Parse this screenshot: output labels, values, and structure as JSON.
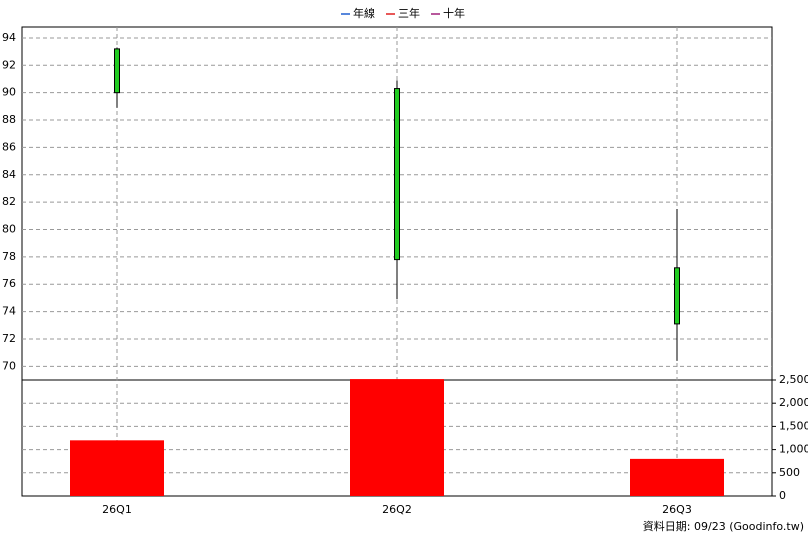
{
  "chart_data": {
    "type": "candlestick",
    "categories": [
      "26Q1",
      "26Q2",
      "26Q3"
    ],
    "open": [
      93.2,
      90.3,
      77.2
    ],
    "high": [
      93.3,
      90.9,
      81.5
    ],
    "low": [
      88.9,
      74.9,
      70.4
    ],
    "close": [
      90.0,
      77.8,
      73.1
    ],
    "candle_color": "#22cc22",
    "ylim": [
      69,
      94.8
    ],
    "yticks": [
      70,
      72,
      74,
      76,
      78,
      80,
      82,
      84,
      86,
      88,
      90,
      92,
      94
    ],
    "volume": {
      "values": [
        1200,
        2520,
        800
      ],
      "color": "#ff0000",
      "ylim": [
        0,
        2500
      ],
      "yticks": [
        0,
        500,
        {
          "value": 1000,
          "label": "1,000"
        },
        {
          "value": 1500,
          "label": "1,500"
        },
        {
          "value": 2000,
          "label": "2,000"
        },
        {
          "value": 2500,
          "label": "2,500"
        }
      ]
    },
    "legend": [
      {
        "name": "年線",
        "color": "#1f5fd0"
      },
      {
        "name": "三年",
        "color": "#e02020"
      },
      {
        "name": "十年",
        "color": "#a0207a"
      }
    ],
    "grid": true,
    "footer": "資料日期: 09/23  (Goodinfo.tw)"
  }
}
